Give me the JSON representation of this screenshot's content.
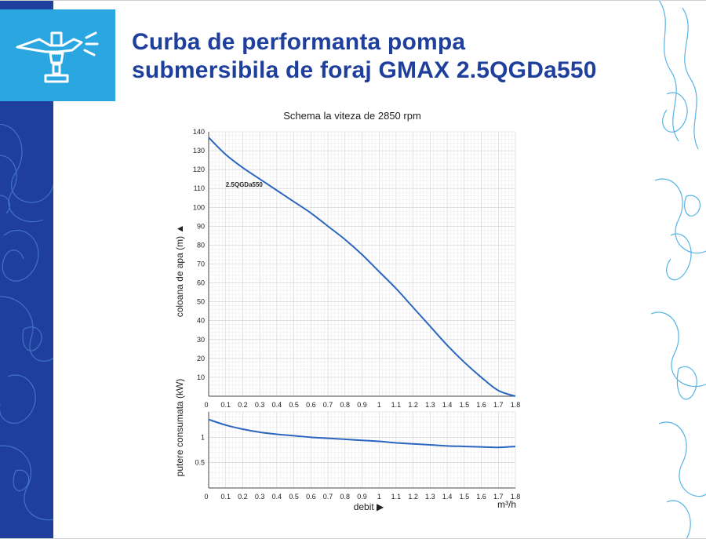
{
  "header": {
    "title_line1": "Curba de performanta pompa",
    "title_line2": "submersibila de foraj GMAX 2.5QGDa550",
    "logo_icon": "sprinkler-icon"
  },
  "colors": {
    "brand_dark": "#1f3f9c",
    "brand_light": "#2aa6e0",
    "curve": "#2a66c0",
    "grid": "#d9d9d9"
  },
  "chart_data": [
    {
      "type": "line",
      "title": "Schema la viteza de 2850 rpm",
      "ylabel": "coloana de apa (m) ▲",
      "xlim": [
        0,
        1.8
      ],
      "ylim": [
        0,
        140
      ],
      "x_ticks": [
        "0",
        "0.1",
        "0.2",
        "0.3",
        "0.4",
        "0.5",
        "0.6",
        "0.7",
        "0.8",
        "0.9",
        "1",
        "1.1",
        "1.2",
        "1.3",
        "1.4",
        "1.5",
        "1.6",
        "1.7",
        "1.8"
      ],
      "y_ticks": [
        "10",
        "20",
        "30",
        "40",
        "50",
        "60",
        "70",
        "80",
        "90",
        "100",
        "110",
        "120",
        "130",
        "140"
      ],
      "grid": true,
      "annotation": "2.5QGDa550",
      "series": [
        {
          "name": "2.5QGDa550",
          "x": [
            0,
            0.1,
            0.2,
            0.3,
            0.4,
            0.5,
            0.6,
            0.7,
            0.8,
            0.9,
            1.0,
            1.1,
            1.2,
            1.3,
            1.4,
            1.5,
            1.6,
            1.7,
            1.8
          ],
          "y": [
            137,
            128,
            121,
            115,
            109,
            103,
            97,
            90,
            83,
            75,
            66,
            57,
            47,
            37,
            27,
            18,
            10,
            3,
            0
          ]
        }
      ]
    },
    {
      "type": "line",
      "ylabel": "putere consumata (kW)",
      "xlabel": "debit ▶",
      "x_unit": "m³/h",
      "xlim": [
        0,
        1.8
      ],
      "ylim": [
        0,
        1.5
      ],
      "x_ticks": [
        "0",
        "0.1",
        "0.2",
        "0.3",
        "0.4",
        "0.5",
        "0.6",
        "0.7",
        "0.8",
        "0.9",
        "1",
        "1.1",
        "1.2",
        "1.3",
        "1.4",
        "1.5",
        "1.6",
        "1.7",
        "1.8"
      ],
      "y_ticks": [
        "0.5",
        "1"
      ],
      "grid": true,
      "series": [
        {
          "x": [
            0,
            0.1,
            0.2,
            0.3,
            0.4,
            0.5,
            0.6,
            0.7,
            0.8,
            0.9,
            1.0,
            1.1,
            1.2,
            1.3,
            1.4,
            1.5,
            1.6,
            1.7,
            1.8
          ],
          "y": [
            1.35,
            1.24,
            1.16,
            1.1,
            1.06,
            1.03,
            1.0,
            0.98,
            0.96,
            0.94,
            0.92,
            0.89,
            0.87,
            0.85,
            0.83,
            0.82,
            0.81,
            0.8,
            0.82
          ]
        }
      ]
    }
  ]
}
